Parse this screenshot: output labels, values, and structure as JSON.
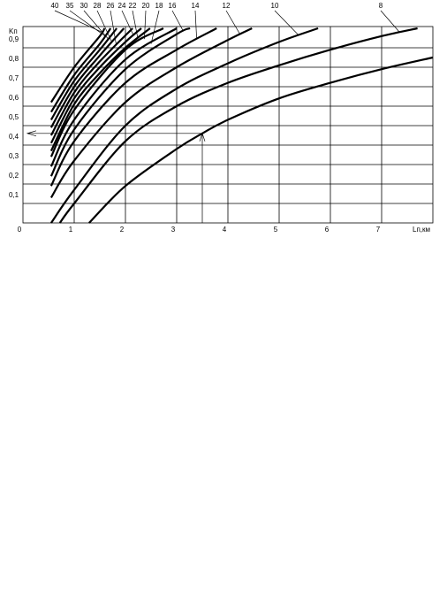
{
  "chart_data": {
    "type": "line",
    "y_label": "Kп",
    "x_label": "Lп,км",
    "xlim": [
      0,
      8
    ],
    "ylim": [
      0,
      1
    ],
    "xticks": [
      0,
      1,
      2,
      3,
      4,
      5,
      6,
      7
    ],
    "yticks": [
      {
        "value": 0.1,
        "label": "0,1"
      },
      {
        "value": 0.2,
        "label": "0,2"
      },
      {
        "value": 0.3,
        "label": "0,3"
      },
      {
        "value": 0.4,
        "label": "0,4"
      },
      {
        "value": 0.5,
        "label": "0,5"
      },
      {
        "value": 0.6,
        "label": "0,6"
      },
      {
        "value": 0.7,
        "label": "0,7"
      },
      {
        "value": 0.8,
        "label": "0,8"
      },
      {
        "value": 0.9,
        "label": "0,9"
      }
    ],
    "grid": true,
    "color": "#000000",
    "annotation_point": [
      3.5,
      0.46
    ],
    "series": [
      {
        "name": "40",
        "x": [
          0.55,
          1,
          1.5,
          1.59
        ],
        "values": [
          0.62,
          0.8,
          0.96,
          1.0
        ]
      },
      {
        "name": "35",
        "x": [
          0.55,
          1,
          1.5,
          1.71
        ],
        "values": [
          0.57,
          0.76,
          0.92,
          1.0
        ]
      },
      {
        "name": "30",
        "x": [
          0.55,
          1,
          1.5,
          1.83
        ],
        "values": [
          0.53,
          0.73,
          0.89,
          1.0
        ]
      },
      {
        "name": "28",
        "x": [
          0.55,
          1,
          1.5,
          1.97
        ],
        "values": [
          0.49,
          0.7,
          0.86,
          1.0
        ]
      },
      {
        "name": "26",
        "x": [
          0.55,
          1,
          1.5,
          2.14
        ],
        "values": [
          0.45,
          0.67,
          0.83,
          1.0
        ]
      },
      {
        "name": "24",
        "x": [
          0.55,
          1,
          1.5,
          2,
          2.31
        ],
        "values": [
          0.41,
          0.64,
          0.8,
          0.93,
          1.0
        ]
      },
      {
        "name": "22",
        "x": [
          0.55,
          1,
          1.5,
          2,
          2.48
        ],
        "values": [
          0.37,
          0.61,
          0.77,
          0.9,
          1.0
        ]
      },
      {
        "name": "20",
        "x": [
          0.55,
          1,
          2,
          2.74
        ],
        "values": [
          0.34,
          0.58,
          0.89,
          1.0
        ]
      },
      {
        "name": "18",
        "x": [
          0.55,
          1,
          2,
          3
        ],
        "values": [
          0.29,
          0.53,
          0.84,
          1.0
        ]
      },
      {
        "name": "16",
        "x": [
          0.55,
          1,
          2,
          3,
          3.26
        ],
        "values": [
          0.24,
          0.48,
          0.79,
          0.97,
          1.0
        ]
      },
      {
        "name": "14",
        "x": [
          0.55,
          1,
          2,
          3,
          3.78
        ],
        "values": [
          0.19,
          0.42,
          0.72,
          0.89,
          1.0
        ]
      },
      {
        "name": "12",
        "x": [
          0.55,
          1,
          2,
          3,
          4,
          4.47
        ],
        "values": [
          0.13,
          0.32,
          0.62,
          0.8,
          0.94,
          1.0
        ]
      },
      {
        "name": "10",
        "x": [
          0.55,
          1,
          2,
          3,
          4,
          5,
          5.76
        ],
        "values": [
          0,
          0.17,
          0.5,
          0.69,
          0.82,
          0.93,
          1.0
        ]
      },
      {
        "name": "8",
        "x": [
          0.72,
          1,
          2,
          3,
          4,
          5,
          6,
          7,
          7.7
        ],
        "values": [
          0,
          0.1,
          0.42,
          0.6,
          0.72,
          0.81,
          0.89,
          0.96,
          1.0
        ]
      },
      {
        "x": [
          1.29,
          2,
          3,
          3.5,
          4,
          5,
          6,
          7,
          8
        ],
        "values": [
          0,
          0.19,
          0.38,
          0.46,
          0.53,
          0.64,
          0.72,
          0.79,
          0.85
        ]
      }
    ]
  }
}
